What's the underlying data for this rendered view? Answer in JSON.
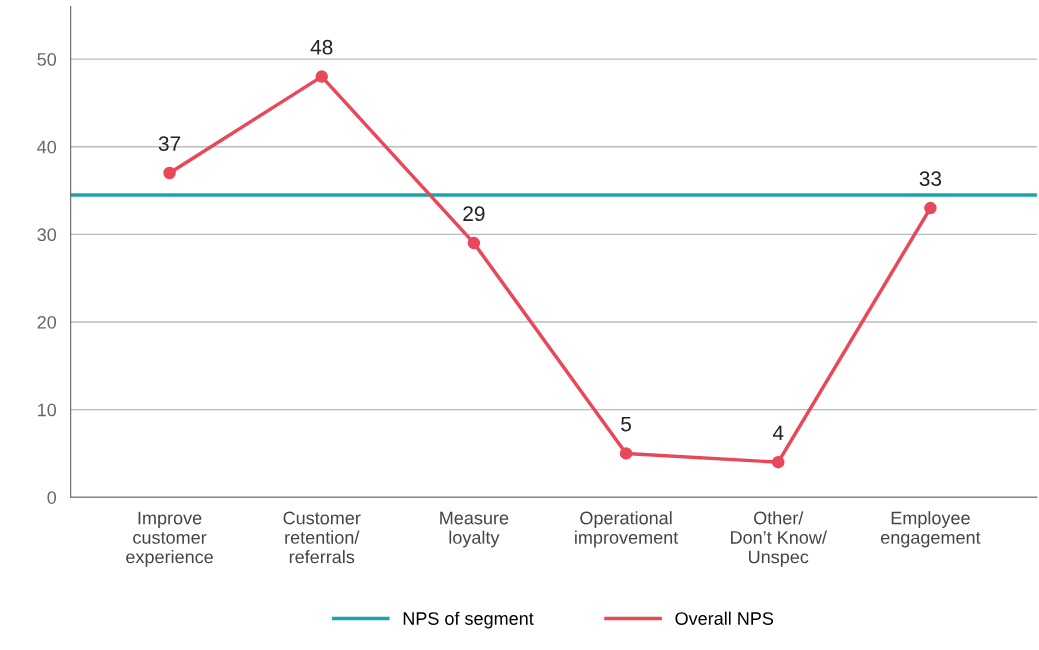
{
  "chart_data": {
    "type": "line",
    "categories": [
      "Improve\ncustomer\nexperience",
      "Customer\nretention/\nreferrals",
      "Measure\nloyalty",
      "Operational\nimprovement",
      "Other/\nDon’t Know/\nUnspec",
      "Employee\nengagement"
    ],
    "series": [
      {
        "name": "Overall NPS",
        "color": "#e8485a",
        "values": [
          37,
          48,
          29,
          5,
          4,
          33
        ]
      }
    ],
    "ref_lines": [
      {
        "axis": "y",
        "value": 34.5,
        "label": "NPS of segment",
        "color": "#1ba3b0",
        "line_style": "solid"
      }
    ],
    "ylim": [
      0,
      56
    ],
    "yticks": [
      0,
      10,
      20,
      30,
      40,
      50
    ],
    "grid": "y",
    "legend": "bottom",
    "marker": "circle",
    "line_style": "solid",
    "data_labels": true
  }
}
